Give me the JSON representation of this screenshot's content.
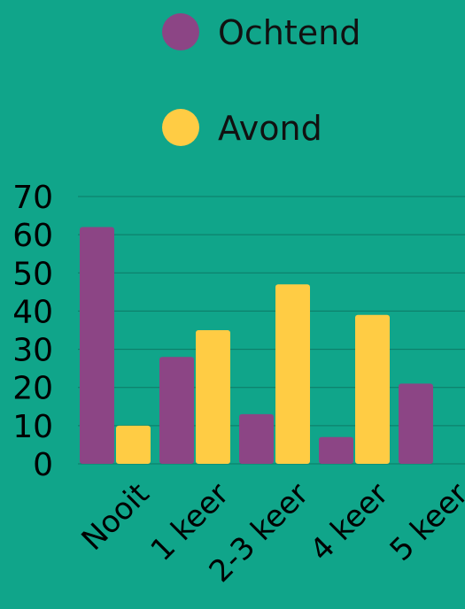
{
  "chart_data": {
    "type": "bar",
    "title": "",
    "xlabel": "",
    "ylabel": "",
    "categories": [
      "Nooit",
      "1 keer",
      "2-3 keer",
      "4 keer",
      "5 keer"
    ],
    "series": [
      {
        "name": "Ochtend",
        "color": "#8c4585",
        "values": [
          62,
          28,
          13,
          7,
          21
        ]
      },
      {
        "name": "Avond",
        "color": "#ffcc44",
        "values": [
          10,
          35,
          47,
          39,
          null
        ]
      }
    ],
    "ylim": [
      0,
      70
    ],
    "yticks": [
      "0",
      "10",
      "20",
      "30",
      "40",
      "50",
      "60",
      "70"
    ],
    "grid": true,
    "legend_position": "top-center"
  },
  "colors": {
    "background": "#10a58a",
    "gridline": "#0d7a66",
    "text": "#000000",
    "legend_text": "#111111"
  }
}
